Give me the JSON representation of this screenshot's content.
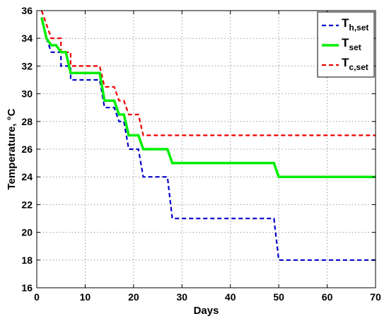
{
  "chart_data": {
    "type": "line",
    "xlabel": "Days",
    "ylabel": "Temperature, °C",
    "xlim": [
      0,
      70
    ],
    "ylim": [
      16,
      36
    ],
    "xticks": [
      0,
      10,
      20,
      30,
      40,
      50,
      60,
      70
    ],
    "yticks": [
      16,
      18,
      20,
      22,
      24,
      26,
      28,
      30,
      32,
      34,
      36
    ],
    "grid": true,
    "legend_position": "top-right",
    "series": [
      {
        "name": "T",
        "subscript": "h,set",
        "color": "#0000cc",
        "dash": "dashed",
        "points": [
          [
            1,
            35.5
          ],
          [
            2,
            34
          ],
          [
            3,
            33
          ],
          [
            5,
            33
          ],
          [
            5,
            32
          ],
          [
            7,
            32
          ],
          [
            7,
            31
          ],
          [
            13,
            31
          ],
          [
            14,
            29
          ],
          [
            16,
            29
          ],
          [
            17,
            28
          ],
          [
            18,
            28
          ],
          [
            19,
            26
          ],
          [
            21,
            26
          ],
          [
            22,
            24
          ],
          [
            27,
            24
          ],
          [
            28,
            21
          ],
          [
            49,
            21
          ],
          [
            50,
            18
          ],
          [
            70,
            18
          ]
        ]
      },
      {
        "name": "T",
        "subscript": "set",
        "color": "#00ee00",
        "dash": "solid",
        "points": [
          [
            1,
            35.5
          ],
          [
            2,
            34
          ],
          [
            3,
            33.5
          ],
          [
            4,
            33.5
          ],
          [
            5,
            33
          ],
          [
            6,
            33
          ],
          [
            7,
            31.5
          ],
          [
            13,
            31.5
          ],
          [
            14,
            29.5
          ],
          [
            16,
            29.5
          ],
          [
            17,
            28.5
          ],
          [
            18,
            28.5
          ],
          [
            19,
            27
          ],
          [
            21,
            27
          ],
          [
            22,
            26
          ],
          [
            27,
            26
          ],
          [
            28,
            25
          ],
          [
            49,
            25
          ],
          [
            50,
            24
          ],
          [
            70,
            24
          ]
        ]
      },
      {
        "name": "T",
        "subscript": "c,set",
        "color": "#ee0000",
        "dash": "dashed",
        "points": [
          [
            1,
            36
          ],
          [
            2,
            35
          ],
          [
            3,
            34
          ],
          [
            5,
            34
          ],
          [
            5,
            33
          ],
          [
            7,
            33
          ],
          [
            7,
            32
          ],
          [
            13,
            32
          ],
          [
            14,
            30.5
          ],
          [
            16,
            30.5
          ],
          [
            17,
            29.5
          ],
          [
            18,
            29.5
          ],
          [
            19,
            28.5
          ],
          [
            21,
            28.5
          ],
          [
            22,
            27
          ],
          [
            70,
            27
          ]
        ]
      }
    ]
  }
}
